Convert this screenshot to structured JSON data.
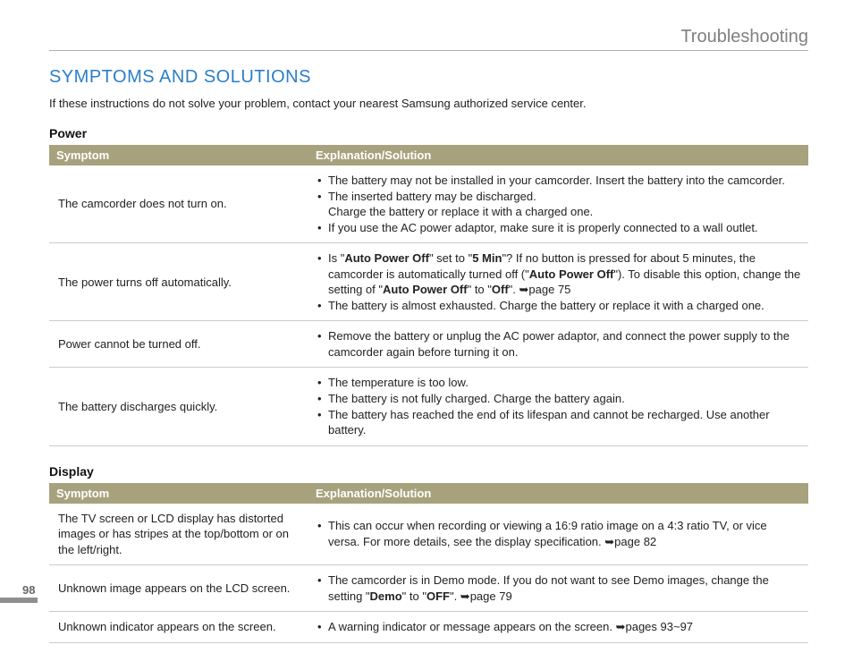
{
  "header": {
    "section_title": "Troubleshooting"
  },
  "main": {
    "heading": "SYMPTOMS AND SOLUTIONS",
    "intro": "If these instructions do not solve your problem, contact your nearest Samsung authorized service center."
  },
  "colors": {
    "heading_blue": "#2a7fc9",
    "table_header_bg": "#a7a27d",
    "table_header_fg": "#ffffff",
    "border": "#cccccc",
    "header_gray": "#808080"
  },
  "tables": [
    {
      "section": "Power",
      "col1": "Symptom",
      "col2": "Explanation/Solution",
      "rows": [
        {
          "symptom": "The camcorder does not turn on.",
          "bullets": [
            "The battery may not be installed in your camcorder. Insert the battery into the camcorder.",
            "The inserted battery may be discharged.\nCharge the battery or replace it with a charged one.",
            "If you use the AC power adaptor, make sure it is properly connected to a wall outlet."
          ]
        },
        {
          "symptom": "The power turns off automatically.",
          "bullets_html": [
            "Is \"<b>Auto Power Off</b>\" set to \"<b>5 Min</b>\"? If no button is pressed for about 5 minutes, the camcorder is automatically turned off (\"<b>Auto Power Off</b>\"). To disable this option, change the setting of \"<b>Auto Power Off</b>\" to \"<b>Off</b>\". <span class='arrow'>➥</span>page 75",
            "The battery is almost exhausted. Charge the battery or replace it with a charged one."
          ]
        },
        {
          "symptom": "Power cannot be turned off.",
          "bullets": [
            "Remove the battery or unplug the AC power adaptor, and connect the power supply to the camcorder again before turning it on."
          ]
        },
        {
          "symptom": "The battery discharges quickly.",
          "bullets": [
            "The temperature is too low.",
            "The battery is not fully charged. Charge the battery again.",
            "The battery has reached the end of its lifespan and cannot be recharged. Use another battery."
          ]
        }
      ]
    },
    {
      "section": "Display",
      "col1": "Symptom",
      "col2": "Explanation/Solution",
      "rows": [
        {
          "symptom": "The TV screen or LCD display has distorted images or has stripes at the top/bottom or on the left/right.",
          "bullets_html": [
            "This can occur when recording or viewing a 16:9 ratio image on a 4:3 ratio TV, or vice versa. For more details, see the display specification. <span class='arrow'>➥</span>page 82"
          ]
        },
        {
          "symptom": "Unknown image appears on the LCD screen.",
          "bullets_html": [
            "The camcorder is in Demo mode. If you do not want to see Demo images, change the setting \"<b>Demo</b>\" to \"<b>OFF</b>\". <span class='arrow'>➥</span>page 79"
          ]
        },
        {
          "symptom": "Unknown indicator appears on the screen.",
          "bullets_html": [
            "A warning indicator or message appears on the screen. <span class='arrow'>➥</span>pages 93~97"
          ]
        }
      ]
    }
  ],
  "page_number": "98"
}
